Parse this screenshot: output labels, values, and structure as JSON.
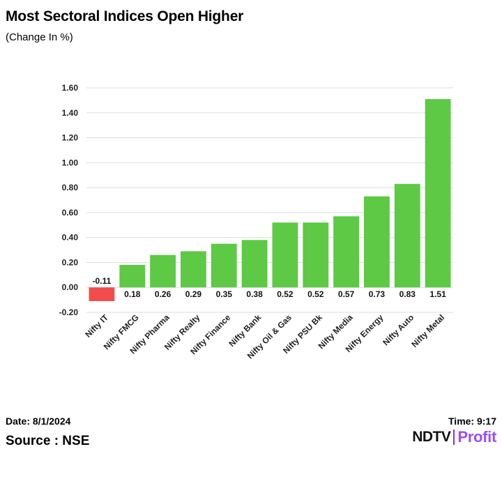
{
  "header": {
    "title": "Most Sectoral Indices Open Higher",
    "subtitle": "(Change In %)"
  },
  "footer": {
    "date": "Date: 8/1/2024",
    "time": "Time: 9:17",
    "source": "Source : NSE",
    "logo_ndtv": "NDTV",
    "logo_profit": "Profit"
  },
  "colors": {
    "positive": "#5dc945",
    "negative": "#f24c4c",
    "grid": "#dddddd"
  },
  "chart_data": {
    "type": "bar",
    "title": "Most Sectoral Indices Open Higher",
    "subtitle": "(Change In %)",
    "xlabel": "",
    "ylabel": "",
    "ylim": [
      -0.2,
      1.6
    ],
    "yticks": [
      -0.2,
      0.0,
      0.2,
      0.4,
      0.6,
      0.8,
      1.0,
      1.2,
      1.4,
      1.6
    ],
    "ytick_labels": [
      "-0.20",
      "0.00",
      "0.20",
      "0.40",
      "0.60",
      "0.80",
      "1.00",
      "1.20",
      "1.40",
      "1.60"
    ],
    "grid": true,
    "categories": [
      "Nifty IT",
      "Nifty FMCG",
      "Nifty Pharma",
      "Nifty Realty",
      "Nifty Finance",
      "Nifty Bank",
      "Nifty Oil & Gas",
      "Nifty PSU Bk",
      "Nifty Media",
      "Nifty Energy",
      "Nifty Auto",
      "Nifty Metal"
    ],
    "values": [
      -0.11,
      0.18,
      0.26,
      0.29,
      0.35,
      0.38,
      0.52,
      0.52,
      0.57,
      0.73,
      0.83,
      1.51
    ],
    "value_labels": [
      "-0.11",
      "0.18",
      "0.26",
      "0.29",
      "0.35",
      "0.38",
      "0.52",
      "0.52",
      "0.57",
      "0.73",
      "0.83",
      "1.51"
    ]
  }
}
